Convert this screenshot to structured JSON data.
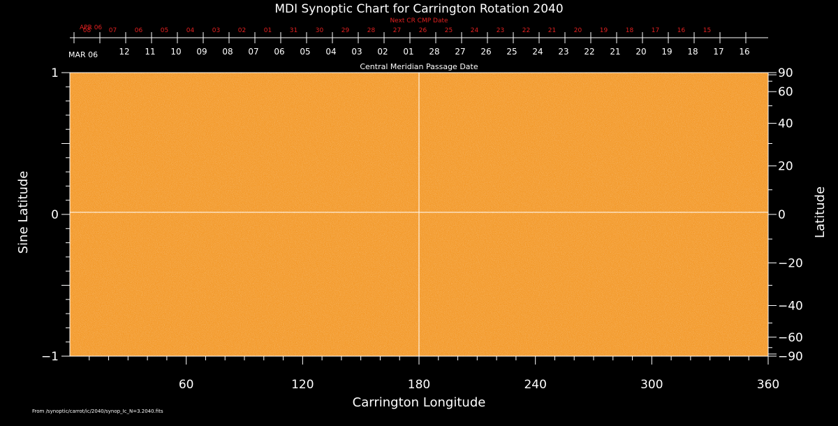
{
  "chart_data": {
    "type": "heatmap",
    "title": "MDI Synoptic Chart for Carrington Rotation 2040",
    "xlabel": "Carrington Longitude",
    "ylabel_left": "Sine Latitude",
    "ylabel_right": "Latitude",
    "xlim": [
      0,
      360
    ],
    "ylim_sine": [
      -1,
      1
    ],
    "x_ticks": [
      60,
      120,
      180,
      240,
      300,
      360
    ],
    "y_left_ticks": [
      {
        "value": 1,
        "label": "1"
      },
      {
        "value": 0,
        "label": "0"
      },
      {
        "value": -1,
        "label": "−1"
      }
    ],
    "y_right_ticks": [
      90,
      60,
      40,
      20,
      0,
      -20,
      -40,
      -60,
      -90
    ],
    "y_right_labels": [
      "90",
      "60",
      "40",
      "20",
      "0",
      "−20",
      "−40",
      "−60",
      "−90"
    ],
    "grid_lines": {
      "longitude": 180,
      "sine_latitude": 0
    },
    "colormap": {
      "base": "#f39a2b",
      "light": "#ffc27a",
      "dark": "#d9771a"
    },
    "next_cr_label": "Next CR CMP Date",
    "next_cr_start_label": "APR 06",
    "next_cr_dates": [
      "08",
      "07",
      "06",
      "05",
      "04",
      "03",
      "02",
      "01",
      "31",
      "30",
      "29",
      "28",
      "27",
      "26",
      "25",
      "24",
      "23",
      "22",
      "21",
      "20",
      "19",
      "18",
      "17",
      "16",
      "15"
    ],
    "cmp_start_label": "MAR 06",
    "cmp_dates": [
      "12",
      "11",
      "10",
      "09",
      "08",
      "07",
      "06",
      "05",
      "04",
      "03",
      "02",
      "01",
      "28",
      "27",
      "26",
      "25",
      "24",
      "23",
      "22",
      "21",
      "20",
      "19",
      "18",
      "17",
      "16"
    ],
    "cmp_label": "Central Meridian Passage Date"
  },
  "footer_text": "From /synoptic/carrot/ic/2040/synop_Ic_N=3.2040.fits"
}
